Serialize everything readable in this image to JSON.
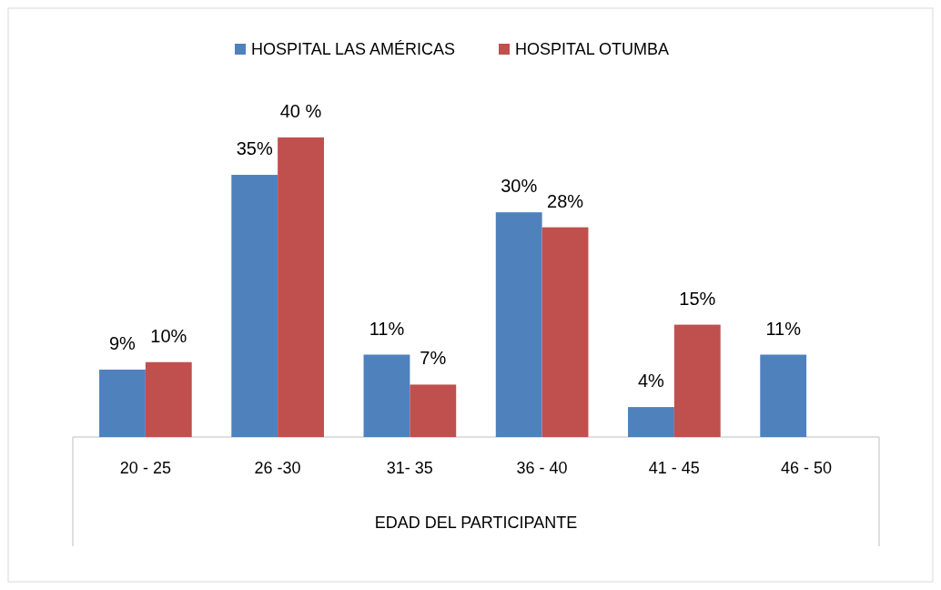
{
  "chart_data": {
    "type": "bar",
    "xlabel": "EDAD DEL PARTICIPANTE",
    "categories": [
      "20 - 25",
      "26 -30",
      "31- 35",
      "36 - 40",
      "41 - 45",
      "46 - 50"
    ],
    "series": [
      {
        "name": "HOSPITAL LAS AMÉRICAS",
        "color": "#4f81bd",
        "values": [
          9,
          35,
          11,
          30,
          4,
          11
        ],
        "value_labels": [
          "9%",
          "35%",
          "11%",
          "30%",
          "4%",
          "11%"
        ]
      },
      {
        "name": "HOSPITAL OTUMBA",
        "color": "#c0504d",
        "values": [
          10,
          40,
          7,
          28,
          15,
          0
        ],
        "value_labels": [
          "10%",
          "40 %",
          "7%",
          "28%",
          "15%",
          null
        ]
      }
    ],
    "legend": "top"
  }
}
